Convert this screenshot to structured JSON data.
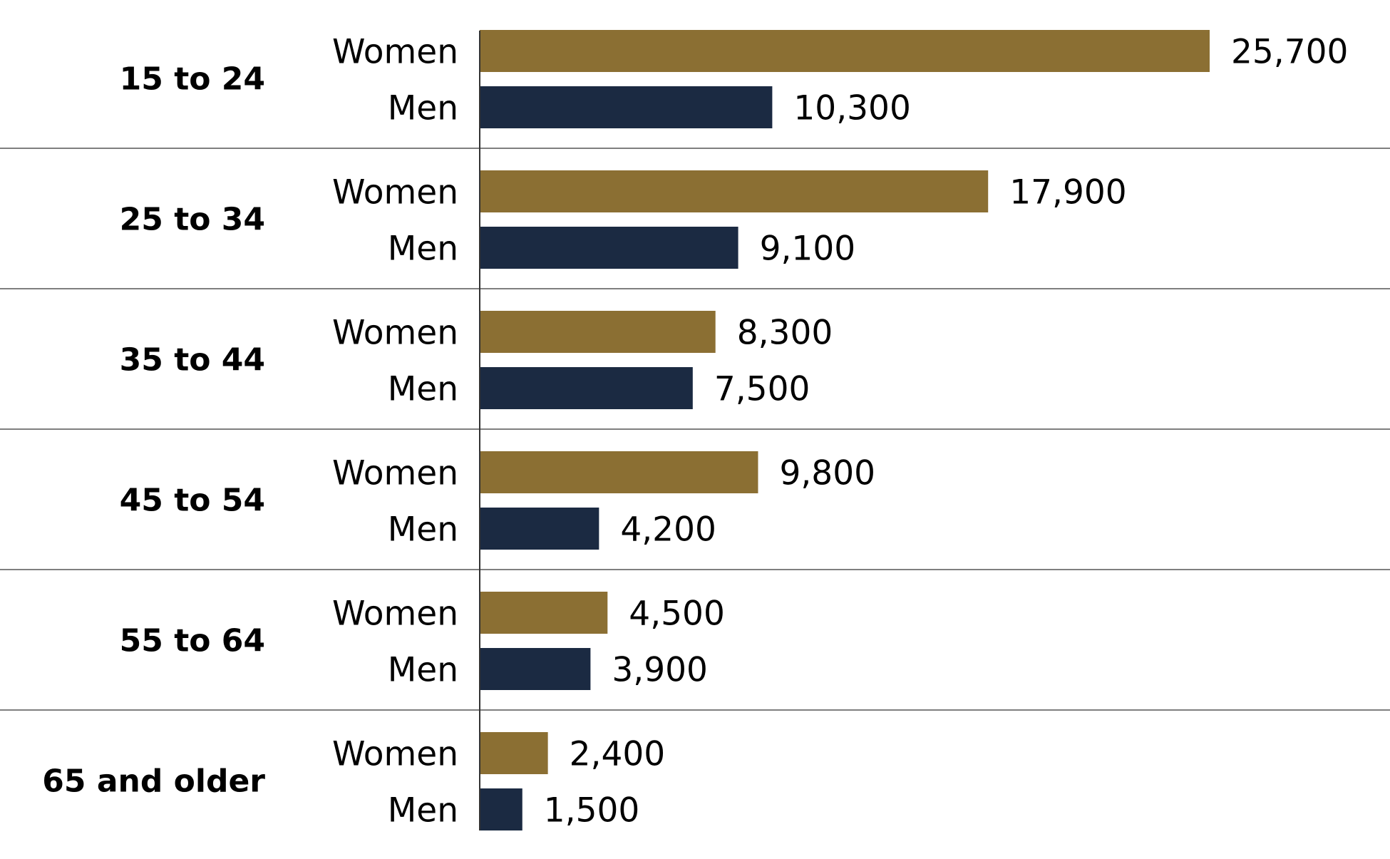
{
  "chart_data": {
    "type": "bar",
    "orientation": "horizontal",
    "categories": [
      "15 to 24",
      "25 to 34",
      "35 to 44",
      "45 to 54",
      "55 to 64",
      "65 and older"
    ],
    "series": [
      {
        "name": "Women",
        "color": "#8b6f33",
        "values": [
          25700,
          17900,
          8300,
          9800,
          4500,
          2400
        ],
        "labels": [
          "25,700",
          "17,900",
          "8,300",
          "9,800",
          "4,500",
          "2,400"
        ]
      },
      {
        "name": "Men",
        "color": "#1b2a42",
        "values": [
          10300,
          9100,
          7500,
          4200,
          3900,
          1500
        ],
        "labels": [
          "10,300",
          "9,100",
          "7,500",
          "4,200",
          "3,900",
          "1,500"
        ]
      }
    ],
    "xlim": [
      0,
      25700
    ],
    "grid": false,
    "legend": "none"
  }
}
